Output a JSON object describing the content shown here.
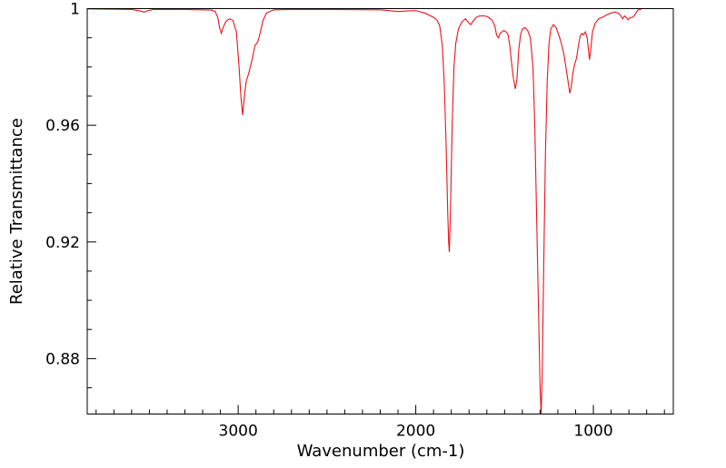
{
  "chart_data": {
    "type": "line",
    "title": "",
    "xlabel": "Wavenumber (cm-1)",
    "ylabel": "Relative Transmittance",
    "x_reversed": true,
    "xlim": [
      3850,
      550
    ],
    "ylim": [
      0.861,
      1.0
    ],
    "grid": false,
    "x_ticks": [
      3000,
      2000,
      1000
    ],
    "x_tick_labels": [
      "3000",
      "2000",
      "1000"
    ],
    "x_minor_step": 100,
    "y_ticks": [
      1.0,
      0.96,
      0.92,
      0.88
    ],
    "y_tick_labels": [
      "1",
      "0.96",
      "0.92",
      "0.88"
    ],
    "y_minor_step": 0.01,
    "series": [
      {
        "color": "#e8141c",
        "points": [
          [
            3850,
            0.9999
          ],
          [
            3700,
            0.9998
          ],
          [
            3600,
            0.9997
          ],
          [
            3550,
            0.9992
          ],
          [
            3530,
            0.9988
          ],
          [
            3510,
            0.9993
          ],
          [
            3480,
            0.9997
          ],
          [
            3300,
            0.9997
          ],
          [
            3150,
            0.9995
          ],
          [
            3130,
            0.999
          ],
          [
            3115,
            0.997
          ],
          [
            3105,
            0.9935
          ],
          [
            3095,
            0.9915
          ],
          [
            3085,
            0.9935
          ],
          [
            3070,
            0.9955
          ],
          [
            3050,
            0.9965
          ],
          [
            3030,
            0.996
          ],
          [
            3010,
            0.992
          ],
          [
            2995,
            0.98
          ],
          [
            2985,
            0.97
          ],
          [
            2975,
            0.9635
          ],
          [
            2965,
            0.97
          ],
          [
            2955,
            0.975
          ],
          [
            2940,
            0.978
          ],
          [
            2920,
            0.983
          ],
          [
            2905,
            0.9875
          ],
          [
            2890,
            0.9885
          ],
          [
            2875,
            0.992
          ],
          [
            2860,
            0.996
          ],
          [
            2840,
            0.9985
          ],
          [
            2800,
            0.9996
          ],
          [
            2700,
            0.9997
          ],
          [
            2500,
            0.9997
          ],
          [
            2200,
            0.9996
          ],
          [
            2100,
            0.999
          ],
          [
            2050,
            0.9992
          ],
          [
            2000,
            0.9993
          ],
          [
            1950,
            0.9985
          ],
          [
            1900,
            0.997
          ],
          [
            1880,
            0.996
          ],
          [
            1865,
            0.994
          ],
          [
            1850,
            0.987
          ],
          [
            1840,
            0.975
          ],
          [
            1830,
            0.955
          ],
          [
            1820,
            0.93
          ],
          [
            1815,
            0.92
          ],
          [
            1811,
            0.9165
          ],
          [
            1805,
            0.93
          ],
          [
            1795,
            0.96
          ],
          [
            1785,
            0.98
          ],
          [
            1775,
            0.988
          ],
          [
            1760,
            0.993
          ],
          [
            1740,
            0.9955
          ],
          [
            1720,
            0.9965
          ],
          [
            1700,
            0.995
          ],
          [
            1690,
            0.9945
          ],
          [
            1680,
            0.9955
          ],
          [
            1660,
            0.997
          ],
          [
            1640,
            0.9975
          ],
          [
            1610,
            0.9975
          ],
          [
            1590,
            0.997
          ],
          [
            1570,
            0.996
          ],
          [
            1555,
            0.994
          ],
          [
            1545,
            0.991
          ],
          [
            1535,
            0.99
          ],
          [
            1525,
            0.9915
          ],
          [
            1505,
            0.9925
          ],
          [
            1490,
            0.992
          ],
          [
            1480,
            0.991
          ],
          [
            1470,
            0.987
          ],
          [
            1460,
            0.981
          ],
          [
            1450,
            0.976
          ],
          [
            1440,
            0.9725
          ],
          [
            1430,
            0.976
          ],
          [
            1420,
            0.986
          ],
          [
            1410,
            0.991
          ],
          [
            1400,
            0.993
          ],
          [
            1385,
            0.9935
          ],
          [
            1370,
            0.9925
          ],
          [
            1355,
            0.99
          ],
          [
            1340,
            0.98
          ],
          [
            1330,
            0.96
          ],
          [
            1320,
            0.93
          ],
          [
            1310,
            0.9
          ],
          [
            1300,
            0.87
          ],
          [
            1294,
            0.861
          ],
          [
            1288,
            0.875
          ],
          [
            1280,
            0.91
          ],
          [
            1270,
            0.95
          ],
          [
            1260,
            0.975
          ],
          [
            1250,
            0.988
          ],
          [
            1240,
            0.993
          ],
          [
            1225,
            0.9945
          ],
          [
            1210,
            0.9935
          ],
          [
            1195,
            0.991
          ],
          [
            1180,
            0.988
          ],
          [
            1165,
            0.984
          ],
          [
            1150,
            0.978
          ],
          [
            1140,
            0.974
          ],
          [
            1133,
            0.971
          ],
          [
            1125,
            0.973
          ],
          [
            1115,
            0.978
          ],
          [
            1105,
            0.981
          ],
          [
            1095,
            0.983
          ],
          [
            1085,
            0.987
          ],
          [
            1075,
            0.9905
          ],
          [
            1065,
            0.9915
          ],
          [
            1055,
            0.991
          ],
          [
            1045,
            0.992
          ],
          [
            1035,
            0.99
          ],
          [
            1028,
            0.986
          ],
          [
            1022,
            0.9825
          ],
          [
            1015,
            0.986
          ],
          [
            1005,
            0.992
          ],
          [
            990,
            0.995
          ],
          [
            970,
            0.9965
          ],
          [
            950,
            0.997
          ],
          [
            920,
            0.998
          ],
          [
            900,
            0.9985
          ],
          [
            880,
            0.9988
          ],
          [
            860,
            0.9985
          ],
          [
            845,
            0.9975
          ],
          [
            835,
            0.9965
          ],
          [
            825,
            0.9975
          ],
          [
            815,
            0.997
          ],
          [
            805,
            0.9962
          ],
          [
            795,
            0.9968
          ],
          [
            780,
            0.997
          ],
          [
            770,
            0.9975
          ],
          [
            760,
            0.9985
          ],
          [
            750,
            0.9995
          ],
          [
            730,
            0.9998
          ]
        ]
      }
    ]
  }
}
